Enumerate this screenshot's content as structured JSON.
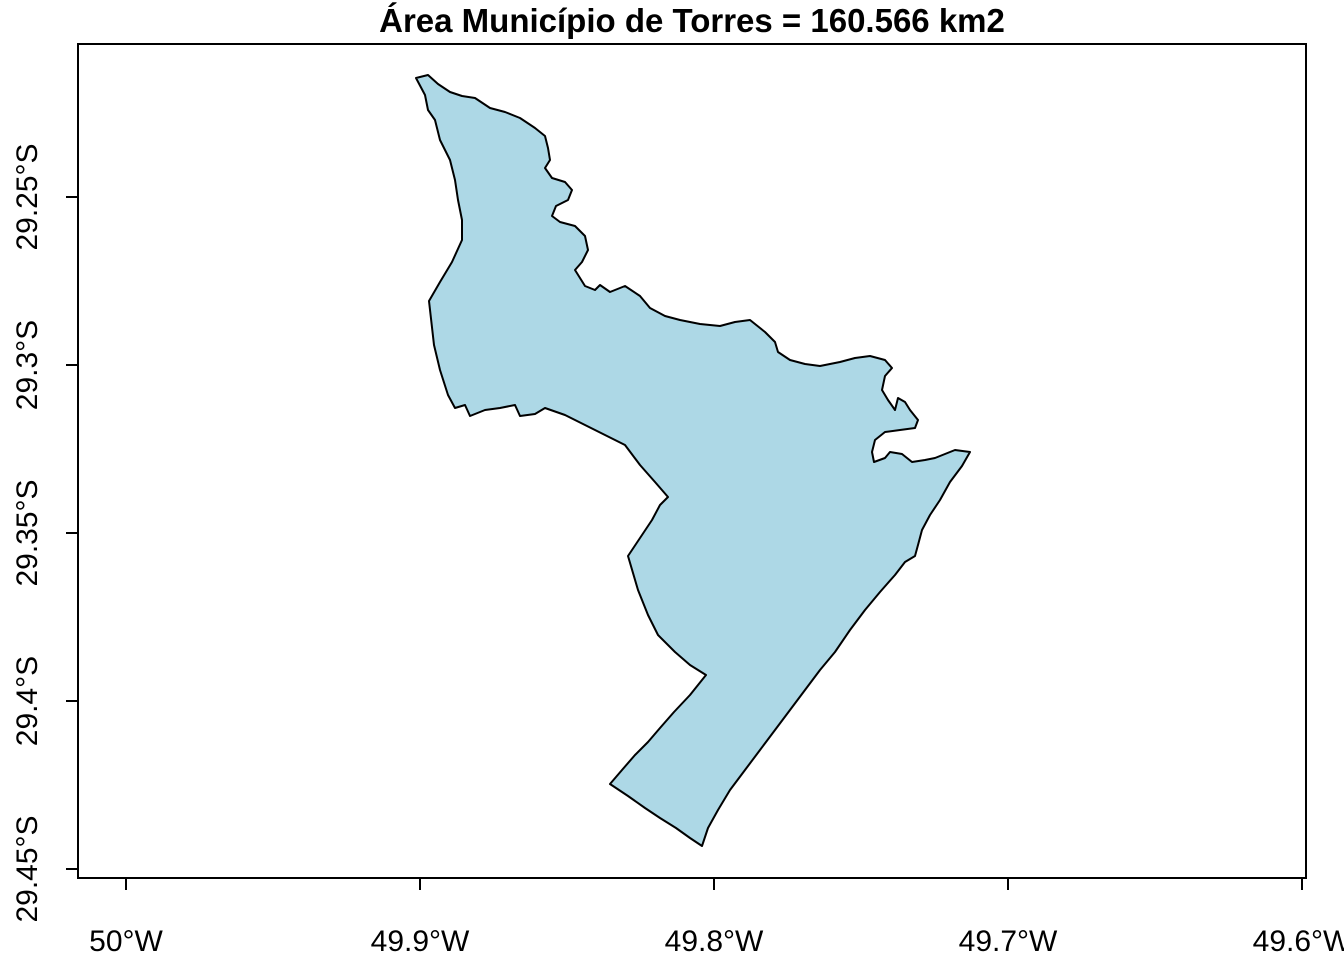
{
  "title": "Área Município de Torres = 160.566 km2",
  "fill_color": "#add8e6",
  "stroke_color": "#000000",
  "x_ticks": [
    "50°W",
    "49.9°W",
    "49.8°W",
    "49.7°W",
    "49.6°W"
  ],
  "y_ticks": [
    "29.25°S",
    "29.3°S",
    "29.35°S",
    "29.4°S",
    "29.45°S"
  ]
}
